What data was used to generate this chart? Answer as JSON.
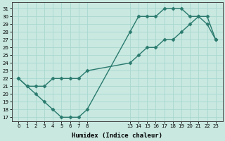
{
  "xlabel": "Humidex (Indice chaleur)",
  "line_color": "#2a7a6e",
  "bg_color": "#c8e8e0",
  "grid_color": "#b0d8d0",
  "xlim": [
    -0.8,
    23.8
  ],
  "ylim": [
    16.5,
    31.8
  ],
  "xticks": [
    0,
    1,
    2,
    3,
    4,
    5,
    6,
    7,
    8,
    13,
    14,
    15,
    16,
    17,
    18,
    19,
    20,
    21,
    22,
    23
  ],
  "yticks": [
    17,
    18,
    19,
    20,
    21,
    22,
    23,
    24,
    25,
    26,
    27,
    28,
    29,
    30,
    31
  ],
  "line1_x": [
    0,
    1,
    2,
    3,
    4,
    5,
    6,
    7,
    8,
    13,
    14,
    15,
    16,
    17,
    18,
    19,
    20,
    21,
    22,
    23
  ],
  "line1_y": [
    22,
    21,
    20,
    19,
    18,
    17,
    17,
    17,
    18,
    28,
    30,
    30,
    30,
    31,
    31,
    31,
    30,
    30,
    29,
    27
  ],
  "line2_x": [
    0,
    1,
    2,
    3,
    4,
    5,
    6,
    7,
    8,
    13,
    14,
    15,
    16,
    17,
    18,
    19,
    20,
    21,
    22,
    23
  ],
  "line2_y": [
    22,
    21,
    21,
    21,
    22,
    22,
    22,
    22,
    23,
    24,
    25,
    26,
    26,
    27,
    27,
    28,
    29,
    30,
    30,
    27
  ],
  "marker": "D",
  "markersize": 2.5,
  "linewidth": 1.0
}
